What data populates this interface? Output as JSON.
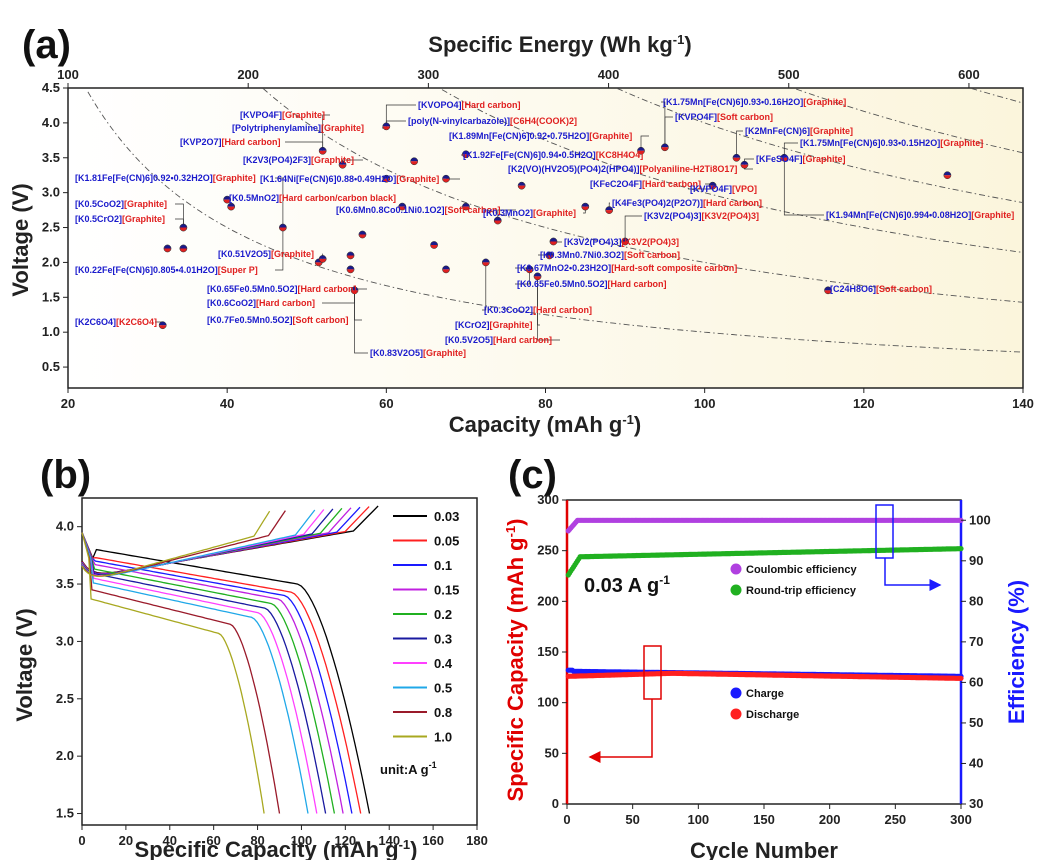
{
  "chart_data": [
    {
      "panel": "(a)",
      "type": "scatter",
      "xlabel": "Capacity (mAh g-1)",
      "ylabel": "Voltage (V)",
      "top_axis_label": "Specific Energy (Wh kg-1)",
      "xlim": [
        20,
        140
      ],
      "ylim": [
        0.2,
        4.5
      ],
      "top_xlim": [
        100,
        630
      ],
      "x_ticks": [
        "20",
        "40",
        "60",
        "80",
        "100",
        "120",
        "140"
      ],
      "y_ticks": [
        "0.5",
        "1.0",
        "1.5",
        "2.0",
        "2.5",
        "3.0",
        "3.5",
        "4.0",
        "4.5"
      ],
      "top_ticks": [
        "100",
        "200",
        "300",
        "400",
        "500",
        "600"
      ],
      "energy_contours_wh_per_kg": [
        100,
        200,
        300,
        400,
        500,
        600
      ],
      "points": [
        {
          "x": 31.9,
          "y": 1.1,
          "formula": "[K2C6O4]",
          "anode": "[K2C6O4]"
        },
        {
          "x": 32.5,
          "y": 2.2,
          "formula": "[K0.5CrO2]",
          "anode": "[Graphite]"
        },
        {
          "x": 34.5,
          "y": 2.5,
          "formula": "[K0.5CoO2]",
          "anode": "[Graphite]"
        },
        {
          "x": 34.5,
          "y": 2.2,
          "formula": "[K0.22Fe[Fe(CN)6]0.805•4.01H2O]",
          "anode": "[Super P]"
        },
        {
          "x": 40.0,
          "y": 2.9,
          "formula": "[K1.81Fe[Fe(CN)6]0.92•0.32H2O]",
          "anode": "[Graphite]"
        },
        {
          "x": 40.5,
          "y": 2.8,
          "formula": "[K0.5MnO2]",
          "anode": "[Hard carbon/carbon black]"
        },
        {
          "x": 47.0,
          "y": 2.5,
          "formula": "[K0.51V2O5]",
          "anode": "[Graphite]"
        },
        {
          "x": 51.5,
          "y": 2.0,
          "formula": "[K0.65Fe0.5Mn0.5O2]",
          "anode": "[Hard carbon]"
        },
        {
          "x": 52.0,
          "y": 2.05,
          "formula": "[K0.6CoO2]",
          "anode": "[Hard carbon]"
        },
        {
          "x": 52.0,
          "y": 3.6,
          "formula": "[Polytriphenylamine]",
          "anode": "[Graphite]"
        },
        {
          "x": 54.5,
          "y": 3.4,
          "formula": "[K2V3(PO4)2F3]",
          "anode": "[Graphite]"
        },
        {
          "x": 55.5,
          "y": 1.9,
          "formula": "[K0.7Fe0.5Mn0.5O2]",
          "anode": "[Soft carbon]"
        },
        {
          "x": 55.5,
          "y": 2.1,
          "formula": "[K0.6Mn0.8Co0.1Ni0.1O2]",
          "anode": "[Soft carbon]"
        },
        {
          "x": 56.0,
          "y": 1.6,
          "formula": "[K0.7Fe0.5Mn0.5O2] low",
          "anode": "[Soft carbon]"
        },
        {
          "x": 57.0,
          "y": 2.4,
          "formula": "[K0.83V2O5]",
          "anode": "[Graphite]"
        },
        {
          "x": 60.0,
          "y": 3.95,
          "formula": "[KVPO4F]",
          "anode": "[Graphite]"
        },
        {
          "x": 60.0,
          "y": 3.2,
          "formula": "[K1.64Ni[Fe(CN)6]0.88•0.49H2O]",
          "anode": "[Graphite]"
        },
        {
          "x": 62.0,
          "y": 2.8,
          "formula": "[KVP2O7]",
          "anode": "[Hard carbon]"
        },
        {
          "x": 63.5,
          "y": 3.45,
          "formula": "[KVOPO4]",
          "anode": "[Hard carbon]"
        },
        {
          "x": 66.0,
          "y": 2.25,
          "formula": "[KCrO2]",
          "anode": "[Graphite]"
        },
        {
          "x": 67.5,
          "y": 3.2,
          "formula": "[poly(N-vinylcarbazole)]",
          "anode": "[C6H4(COOK)2]"
        },
        {
          "x": 67.5,
          "y": 1.9,
          "formula": "[K0.5V2O5]",
          "anode": "[Hard carbon]"
        },
        {
          "x": 70.0,
          "y": 3.55,
          "formula": "[K1.89Mn[Fe(CN)6]0.92•0.75H2O]",
          "anode": "[Graphite]"
        },
        {
          "x": 70.0,
          "y": 2.8,
          "formula": "[K1.92Fe[Fe(CN)6]0.94•0.5H2O]",
          "anode": "[KC8H4O4]"
        },
        {
          "x": 72.5,
          "y": 2.0,
          "formula": "[K0.3CoO2]",
          "anode": "[Hard carbon]"
        },
        {
          "x": 74.0,
          "y": 2.6,
          "formula": "[K0.3MnO2]",
          "anode": "[Graphite]"
        },
        {
          "x": 77.0,
          "y": 3.1,
          "formula": "[K2(VO)(HV2O5)(PO4)2(HPO4)]",
          "anode": "[Polyaniline-H2Ti8O17]"
        },
        {
          "x": 78.0,
          "y": 1.9,
          "formula": "[K0.67MnO2•0.23H2O]",
          "anode": "[Hard-soft composite carbon]"
        },
        {
          "x": 79.0,
          "y": 1.8,
          "formula": "[K0.65Fe0.5Mn0.5O2] b",
          "anode": "[Hard carbon]"
        },
        {
          "x": 80.5,
          "y": 2.1,
          "formula": "[K0.3Mn0.7Ni0.3O2]",
          "anode": "[Soft carbon]"
        },
        {
          "x": 81.0,
          "y": 2.3,
          "formula": "[K3V2(PO4)3]",
          "anode": "[K3V2(PO4)3]"
        },
        {
          "x": 85.0,
          "y": 2.8,
          "formula": "[KFeC2O4F]",
          "anode": "[Hard carbon]"
        },
        {
          "x": 88.0,
          "y": 2.75,
          "formula": "[K4Fe3(PO4)2(P2O7)]",
          "anode": "[Hard carbon]"
        },
        {
          "x": 90.0,
          "y": 2.3,
          "formula": "[K3V2(PO4)3] b",
          "anode": "[K3V2(PO4)3]"
        },
        {
          "x": 92.0,
          "y": 3.6,
          "formula": "[KVPO4F] b",
          "anode": "[Soft carbon]"
        },
        {
          "x": 95.0,
          "y": 3.65,
          "formula": "[K1.75Mn[Fe(CN)6]0.93•0.16H2O]",
          "anode": "[Graphite]"
        },
        {
          "x": 101.0,
          "y": 3.1,
          "formula": "[KVPO4F] c",
          "anode": "[VPO]"
        },
        {
          "x": 104.0,
          "y": 3.5,
          "formula": "[K2MnFe(CN)6]",
          "anode": "[Graphite]"
        },
        {
          "x": 105.0,
          "y": 3.4,
          "formula": "[KFeSO4F]",
          "anode": "[Graphite]"
        },
        {
          "x": 110.0,
          "y": 3.5,
          "formula": "[K1.75Mn[Fe(CN)6]0.93•0.15H2O]",
          "anode": "[Graphite]"
        },
        {
          "x": 115.5,
          "y": 1.6,
          "formula": "[C24H8O6]",
          "anode": "[Soft carbon]"
        },
        {
          "x": 130.5,
          "y": 3.25,
          "formula": "[K1.94Mn[Fe(CN)6]0.994•0.08H2O]",
          "anode": "[Graphite]"
        }
      ],
      "annotations": [
        {
          "f": "[KVPO4F]",
          "a": "[Graphite]",
          "x": 240,
          "y": 118
        },
        {
          "f": "[KVOPO4]",
          "a": "[Hard carbon]",
          "x": 418,
          "y": 108
        },
        {
          "f": "[Polytriphenylamine]",
          "a": "[Graphite]",
          "x": 232,
          "y": 131
        },
        {
          "f": "[poly(N-vinylcarbazole)]",
          "a": "[C6H4(COOK)2]",
          "x": 408,
          "y": 124
        },
        {
          "f": "[KVP2O7]",
          "a": "[Hard carbon]",
          "x": 180,
          "y": 145
        },
        {
          "f": "[K1.89Mn[Fe(CN)6]0.92•0.75H2O]",
          "a": "[Graphite]",
          "x": 449,
          "y": 139
        },
        {
          "f": "[K2V3(PO4)2F3]",
          "a": "[Graphite]",
          "x": 243,
          "y": 163
        },
        {
          "f": "[K1.92Fe[Fe(CN)6]0.94•0.5H2O]",
          "a": "[KC8H4O4]",
          "x": 463,
          "y": 158
        },
        {
          "f": "[K2(VO)(HV2O5)(PO4)2(HPO4)]",
          "a": "[Polyaniline-H2Ti8O17]",
          "x": 508,
          "y": 172
        },
        {
          "f": "[K1.64Ni[Fe(CN)6]0.88•0.49H2O]",
          "a": "[Graphite]",
          "x": 260,
          "y": 182
        },
        {
          "f": "[K1.81Fe[Fe(CN)6]0.92•0.32H2O]",
          "a": "[Graphite]",
          "x": 75,
          "y": 181
        },
        {
          "f": "[K0.5MnO2]",
          "a": "[Hard carbon/carbon black]",
          "x": 229,
          "y": 201
        },
        {
          "f": "[K0.6Mn0.8Co0.1Ni0.1O2]",
          "a": "[Soft carbon]",
          "x": 336,
          "y": 213
        },
        {
          "f": "[K0.3MnO2]",
          "a": "[Graphite]",
          "x": 483,
          "y": 216
        },
        {
          "f": "[K0.5CoO2]",
          "a": "[Graphite]",
          "x": 75,
          "y": 207
        },
        {
          "f": "[K0.5CrO2]",
          "a": "[Graphite]",
          "x": 75,
          "y": 222
        },
        {
          "f": "[K0.51V2O5]",
          "a": "[Graphite]",
          "x": 218,
          "y": 257
        },
        {
          "f": "[K0.22Fe[Fe(CN)6]0.805•4.01H2O]",
          "a": "[Super P]",
          "x": 75,
          "y": 273
        },
        {
          "f": "[K0.65Fe0.5Mn0.5O2]",
          "a": "[Hard carbon]",
          "x": 207,
          "y": 292
        },
        {
          "f": "[K0.6CoO2]",
          "a": "[Hard carbon]",
          "x": 207,
          "y": 306
        },
        {
          "f": "[K0.7Fe0.5Mn0.5O2]",
          "a": "[Soft carbon]",
          "x": 207,
          "y": 323
        },
        {
          "f": "[K2C6O4]",
          "a": "[K2C6O4]",
          "x": 75,
          "y": 325
        },
        {
          "f": "[K0.3CoO2]",
          "a": "[Hard carbon]",
          "x": 484,
          "y": 313
        },
        {
          "f": "[KCrO2]",
          "a": "[Graphite]",
          "x": 455,
          "y": 328
        },
        {
          "f": "[K0.5V2O5]",
          "a": "[Hard carbon]",
          "x": 445,
          "y": 343
        },
        {
          "f": "[K0.83V2O5]",
          "a": "[Graphite]",
          "x": 370,
          "y": 356
        },
        {
          "f": "[K3V2(PO4)3]",
          "a": "[K3V2(PO4)3]",
          "x": 564,
          "y": 245
        },
        {
          "f": "[K0.3Mn0.7Ni0.3O2]",
          "a": "[Soft carbon]",
          "x": 540,
          "y": 258
        },
        {
          "f": "[K0.67MnO2•0.23H2O]",
          "a": "[Hard-soft composite carbon]",
          "x": 517,
          "y": 271
        },
        {
          "f": "[K0.65Fe0.5Mn0.5O2]",
          "a": "[Hard carbon]",
          "x": 517,
          "y": 287
        },
        {
          "f": "[KFeC2O4F]",
          "a": "[Hard carbon]",
          "x": 590,
          "y": 187
        },
        {
          "f": "[K4Fe3(PO4)2(P2O7)]",
          "a": "[Hard carbon]",
          "x": 612,
          "y": 206
        },
        {
          "f": "[KVPO4F]",
          "a": "[VPO]",
          "x": 690,
          "y": 192
        },
        {
          "f": "[KVPO4F]",
          "a": "[Soft carbon]",
          "x": 675,
          "y": 120
        },
        {
          "f": "[K3V2(PO4)3]",
          "a": "[K3V2(PO4)3]",
          "x": 644,
          "y": 219
        },
        {
          "f": "[K1.75Mn[Fe(CN)6]0.93•0.16H2O]",
          "a": "[Graphite]",
          "x": 663,
          "y": 105
        },
        {
          "f": "[K2MnFe(CN)6]",
          "a": "[Graphite]",
          "x": 745,
          "y": 134
        },
        {
          "f": "[K1.75Mn[Fe(CN)6]0.93•0.15H2O]",
          "a": "[Graphite]",
          "x": 800,
          "y": 146
        },
        {
          "f": "[KFeSO4F]",
          "a": "[Graphite]",
          "x": 756,
          "y": 162
        },
        {
          "f": "[K1.94Mn[Fe(CN)6]0.994•0.08H2O]",
          "a": "[Graphite]",
          "x": 826,
          "y": 218
        },
        {
          "f": "[C24H8O6]",
          "a": "[Soft carbon]",
          "x": 830,
          "y": 292
        }
      ]
    },
    {
      "panel": "(b)",
      "type": "line",
      "xlabel": "Specific Capacity (mAh g-1)",
      "ylabel": "Voltage (V)",
      "xlim": [
        0,
        180
      ],
      "ylim": [
        1.4,
        4.25
      ],
      "x_ticks": [
        "0",
        "20",
        "40",
        "60",
        "80",
        "100",
        "120",
        "140",
        "160",
        "180"
      ],
      "y_ticks": [
        "1.5",
        "2.0",
        "2.5",
        "3.0",
        "3.5",
        "4.0"
      ],
      "legend_unit": "unit:A g-1",
      "series": [
        {
          "name": "0.03",
          "color": "#000000",
          "capacity": 131,
          "plateau": 3.65
        },
        {
          "name": "0.05",
          "color": "#ff2020",
          "capacity": 127,
          "plateau": 3.58
        },
        {
          "name": "0.1",
          "color": "#1a1aff",
          "capacity": 123,
          "plateau": 3.55
        },
        {
          "name": "0.15",
          "color": "#c020e0",
          "capacity": 119,
          "plateau": 3.52
        },
        {
          "name": "0.2",
          "color": "#20b020",
          "capacity": 115,
          "plateau": 3.48
        },
        {
          "name": "0.3",
          "color": "#1a1aa0",
          "capacity": 111,
          "plateau": 3.44
        },
        {
          "name": "0.4",
          "color": "#ff40ff",
          "capacity": 107,
          "plateau": 3.4
        },
        {
          "name": "0.5",
          "color": "#20a8e8",
          "capacity": 103,
          "plateau": 3.36
        },
        {
          "name": "0.8",
          "color": "#9a1a2a",
          "capacity": 90,
          "plateau": 3.3
        },
        {
          "name": "1.0",
          "color": "#a8a820",
          "capacity": 83,
          "plateau": 3.22
        }
      ]
    },
    {
      "panel": "(c)",
      "type": "line",
      "xlabel": "Cycle Number",
      "ylabel": "Specific Capacity (mAh g-1)",
      "y2label": "Efficiency (%)",
      "xlim": [
        0,
        300
      ],
      "ylim": [
        0,
        300
      ],
      "y2lim": [
        30,
        105
      ],
      "x_ticks": [
        "0",
        "50",
        "100",
        "150",
        "200",
        "250",
        "300"
      ],
      "y_ticks": [
        "0",
        "50",
        "100",
        "150",
        "200",
        "250",
        "300"
      ],
      "y2_ticks": [
        "30",
        "40",
        "50",
        "60",
        "70",
        "80",
        "90",
        "100"
      ],
      "annotation": "0.03 A g-1",
      "series": [
        {
          "name": "Coulombic efficiency",
          "axis": "right",
          "color": "#b040e0",
          "values": {
            "start": 97,
            "plateau": 100
          }
        },
        {
          "name": "Round-trip efficiency",
          "axis": "right",
          "color": "#20b020",
          "values": {
            "start": 86,
            "plateau_start": 91,
            "end": 93
          }
        },
        {
          "name": "Charge",
          "axis": "left",
          "color": "#1a1aff",
          "values": {
            "start": 132,
            "mid": 131,
            "end": 126
          }
        },
        {
          "name": "Discharge",
          "axis": "left",
          "color": "#ff2020",
          "values": {
            "start": 126,
            "mid": 129,
            "end": 124
          }
        }
      ]
    }
  ],
  "labels": {
    "panel_a": "(a)",
    "panel_b": "(b)",
    "panel_c": "(c)",
    "a_top_title": "Specific Energy (Wh kg",
    "a_top_sup": "-1",
    "a_top_end": ")",
    "a_xlabel": "Capacity (mAh g",
    "a_xlabel_sup": "-1",
    "a_xlabel_end": ")",
    "a_ylabel": "Voltage (V)",
    "b_xlabel": "Specific Capacity (mAh g",
    "b_xlabel_sup": "-1",
    "b_xlabel_end": ")",
    "b_ylabel": "Voltage (V)",
    "b_unit": "unit:A g",
    "b_unit_sup": "-1",
    "c_xlabel": "Cycle Number",
    "c_ylabel": "Specific Capacity (mAh g",
    "c_ylabel_sup": "-1",
    "c_ylabel_end": ")",
    "c_y2label": "Efficiency (%)",
    "c_rate": "0.03 A g",
    "c_rate_sup": "-1"
  },
  "colors": {
    "formula": "#1a1acc",
    "anode": "#e02020",
    "marker_left": "#e02020",
    "marker_right": "#1a1a8a",
    "c_left_axis": "#e00000",
    "c_right_axis": "#1a1aff"
  }
}
